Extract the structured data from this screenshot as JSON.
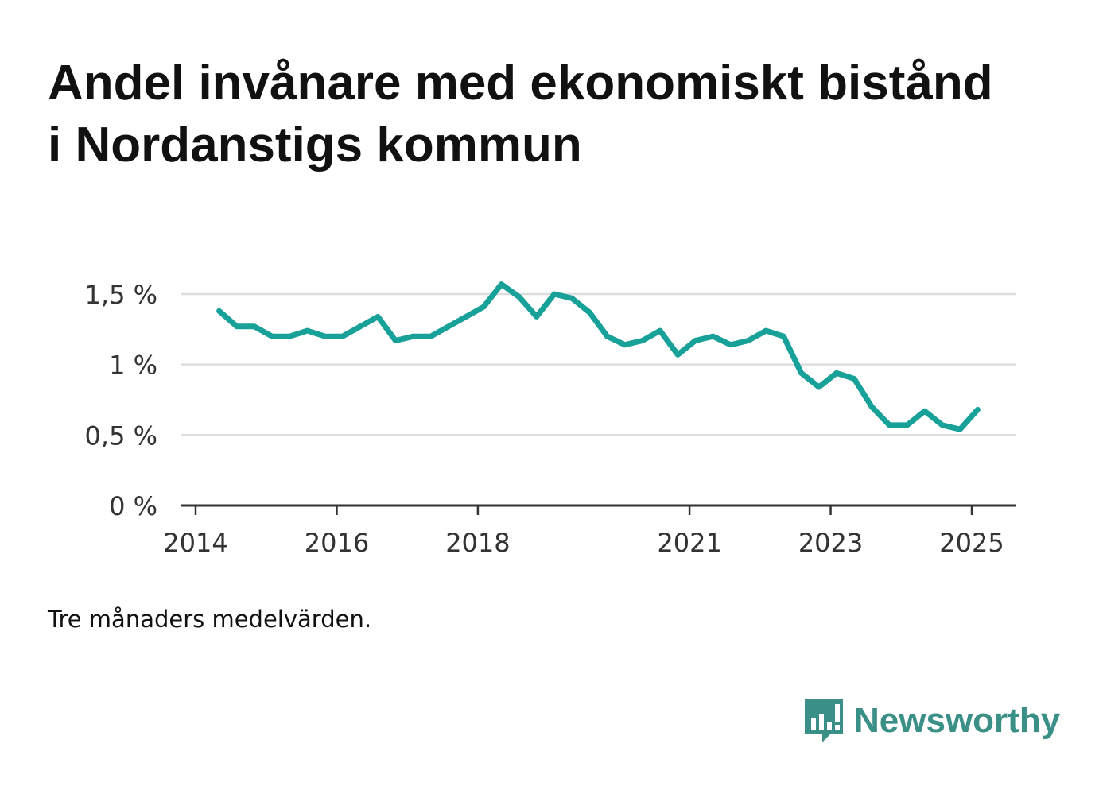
{
  "title": "Andel invånare med ekonomiskt bistånd i Nordanstigs kommun",
  "note": "Tre månaders medelvärden.",
  "brand": {
    "name": "Newsworthy",
    "logo_icon": "bar-chart-speech-bubble-icon",
    "color": "#3a8f86"
  },
  "colors": {
    "line": "#17a199",
    "grid": "#dddddd",
    "axis": "#333333",
    "tick_label": "#333333"
  },
  "chart_data": {
    "type": "line",
    "title": "Andel invånare med ekonomiskt bistånd i Nordanstigs kommun",
    "xlabel": "",
    "ylabel": "",
    "ylim": [
      0,
      1.5
    ],
    "yticks": [
      0,
      0.5,
      1,
      1.5
    ],
    "ytick_labels": [
      "0 %",
      "0,5 %",
      "1 %",
      "1,5 %"
    ],
    "xticks": [
      2014,
      2016,
      2018,
      2021,
      2023,
      2025
    ],
    "xtick_labels": [
      "2014",
      "2016",
      "2018",
      "2021",
      "2023",
      "2025"
    ],
    "grid": true,
    "series": [
      {
        "x": [
          "2014-05",
          "2014-08",
          "2014-11",
          "2015-02",
          "2015-05",
          "2015-08",
          "2015-11",
          "2016-02",
          "2016-05",
          "2016-08",
          "2016-11",
          "2017-02",
          "2017-05",
          "2017-08",
          "2017-11",
          "2018-02",
          "2018-05",
          "2018-08",
          "2018-11",
          "2019-02",
          "2019-05",
          "2019-08",
          "2019-11",
          "2020-02",
          "2020-05",
          "2020-08",
          "2020-11",
          "2021-02",
          "2021-05",
          "2021-08",
          "2021-11",
          "2022-02",
          "2022-05",
          "2022-08",
          "2022-11",
          "2023-02",
          "2023-05",
          "2023-08",
          "2023-11",
          "2024-02",
          "2024-05",
          "2024-08",
          "2024-11",
          "2025-02"
        ],
        "values": [
          1.38,
          1.27,
          1.27,
          1.2,
          1.2,
          1.24,
          1.2,
          1.2,
          1.27,
          1.34,
          1.17,
          1.2,
          1.2,
          1.27,
          1.34,
          1.41,
          1.57,
          1.48,
          1.34,
          1.5,
          1.47,
          1.37,
          1.2,
          1.14,
          1.17,
          1.24,
          1.07,
          1.17,
          1.2,
          1.14,
          1.17,
          1.24,
          1.2,
          0.94,
          0.84,
          0.94,
          0.9,
          0.7,
          0.57,
          0.57,
          0.67,
          0.57,
          0.54,
          0.68
        ]
      }
    ]
  }
}
